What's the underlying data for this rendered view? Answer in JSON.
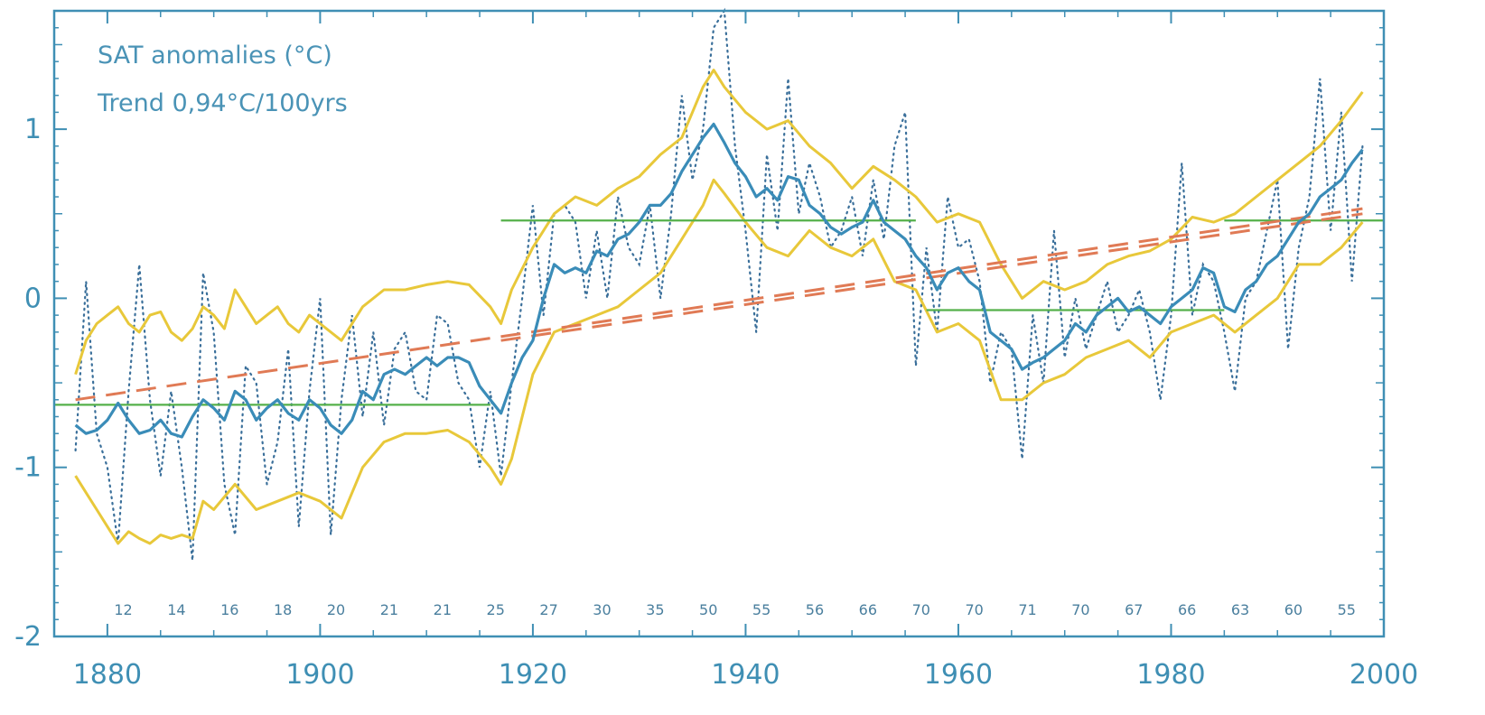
{
  "chart_data": {
    "type": "line",
    "legend": {
      "title": "SAT anomalies (°C)",
      "trend": "Trend 0,94°C/100yrs",
      "placement": "top-left"
    },
    "xlim": [
      1875,
      2000
    ],
    "ylim": [
      -2,
      1.7
    ],
    "x_ticks": [
      1880,
      1900,
      1920,
      1940,
      1960,
      1980,
      2000
    ],
    "y_ticks": [
      -2,
      -1,
      0,
      1
    ],
    "y_tick_labels": [
      "-2",
      "-1",
      "0",
      "1"
    ],
    "grid": false,
    "colors": {
      "axis": "#3f8fb4",
      "annual": "#3a6f9a",
      "smoothed": "#3a8cb8",
      "confidence": "#e8c83a",
      "mean": "#55b04a",
      "trend": "#e07a55"
    },
    "station_counts": {
      "years": [
        1881.5,
        1886.5,
        1891.5,
        1896.5,
        1901.5,
        1906.5,
        1911.5,
        1916.5,
        1921.5,
        1926.5,
        1931.5,
        1936.5,
        1941.5,
        1946.5,
        1951.5,
        1956.5,
        1961.5,
        1966.5,
        1971.5,
        1976.5,
        1981.5,
        1986.5,
        1991.5,
        1996.5
      ],
      "labels": [
        "12",
        "14",
        "16",
        "18",
        "20",
        "21",
        "21",
        "25",
        "27",
        "30",
        "35",
        "50",
        "55",
        "56",
        "66",
        "70",
        "70",
        "71",
        "70",
        "67",
        "66",
        "63",
        "60",
        "55"
      ]
    },
    "series": [
      {
        "role": "annual",
        "style": "dotted",
        "x": [
          1877,
          1878,
          1879,
          1880,
          1881,
          1882,
          1883,
          1884,
          1885,
          1886,
          1887,
          1888,
          1889,
          1890,
          1891,
          1892,
          1893,
          1894,
          1895,
          1896,
          1897,
          1898,
          1899,
          1900,
          1901,
          1902,
          1903,
          1904,
          1905,
          1906,
          1907,
          1908,
          1909,
          1910,
          1911,
          1912,
          1913,
          1914,
          1915,
          1916,
          1917,
          1918,
          1919,
          1920,
          1921,
          1922,
          1923,
          1924,
          1925,
          1926,
          1927,
          1928,
          1929,
          1930,
          1931,
          1932,
          1933,
          1934,
          1935,
          1936,
          1937,
          1938,
          1939,
          1940,
          1941,
          1942,
          1943,
          1944,
          1945,
          1946,
          1947,
          1948,
          1949,
          1950,
          1951,
          1952,
          1953,
          1954,
          1955,
          1956,
          1957,
          1958,
          1959,
          1960,
          1961,
          1962,
          1963,
          1964,
          1965,
          1966,
          1967,
          1968,
          1969,
          1970,
          1971,
          1972,
          1973,
          1974,
          1975,
          1976,
          1977,
          1978,
          1979,
          1980,
          1981,
          1982,
          1983,
          1984,
          1985,
          1986,
          1987,
          1988,
          1989,
          1990,
          1991,
          1992,
          1993,
          1994,
          1995,
          1996,
          1997,
          1998
        ],
        "y": [
          -0.9,
          0.1,
          -0.8,
          -1.0,
          -1.45,
          -0.55,
          0.2,
          -0.6,
          -1.05,
          -0.55,
          -1.0,
          -1.55,
          0.15,
          -0.2,
          -1.1,
          -1.4,
          -0.4,
          -0.5,
          -1.1,
          -0.85,
          -0.3,
          -1.35,
          -0.55,
          0.0,
          -1.4,
          -0.6,
          -0.1,
          -0.7,
          -0.2,
          -0.75,
          -0.3,
          -0.2,
          -0.55,
          -0.6,
          -0.1,
          -0.15,
          -0.5,
          -0.6,
          -1.0,
          -0.55,
          -1.05,
          -0.5,
          0.0,
          0.55,
          -0.1,
          0.5,
          0.55,
          0.45,
          0.0,
          0.4,
          0.0,
          0.6,
          0.3,
          0.2,
          0.55,
          0.0,
          0.5,
          1.2,
          0.7,
          1.0,
          1.6,
          1.7,
          0.9,
          0.4,
          -0.2,
          0.85,
          0.4,
          1.3,
          0.5,
          0.8,
          0.6,
          0.3,
          0.4,
          0.6,
          0.25,
          0.7,
          0.35,
          0.9,
          1.1,
          -0.4,
          0.3,
          -0.2,
          0.6,
          0.3,
          0.35,
          0.1,
          -0.5,
          -0.2,
          -0.3,
          -0.95,
          -0.1,
          -0.5,
          0.4,
          -0.35,
          0.0,
          -0.3,
          -0.1,
          0.1,
          -0.2,
          -0.1,
          0.05,
          -0.2,
          -0.6,
          -0.1,
          0.8,
          -0.1,
          0.2,
          0.1,
          -0.2,
          -0.55,
          0.0,
          0.1,
          0.4,
          0.7,
          -0.3,
          0.3,
          0.6,
          1.3,
          0.4,
          1.1,
          0.1,
          0.9
        ]
      },
      {
        "role": "smoothed",
        "style": "solid",
        "x": [
          1877,
          1878,
          1879,
          1880,
          1881,
          1882,
          1883,
          1884,
          1885,
          1886,
          1887,
          1888,
          1889,
          1890,
          1891,
          1892,
          1893,
          1894,
          1895,
          1896,
          1897,
          1898,
          1899,
          1900,
          1901,
          1902,
          1903,
          1904,
          1905,
          1906,
          1907,
          1908,
          1909,
          1910,
          1911,
          1912,
          1913,
          1914,
          1915,
          1916,
          1917,
          1918,
          1919,
          1920,
          1921,
          1922,
          1923,
          1924,
          1925,
          1926,
          1927,
          1928,
          1929,
          1930,
          1931,
          1932,
          1933,
          1934,
          1935,
          1936,
          1937,
          1938,
          1939,
          1940,
          1941,
          1942,
          1943,
          1944,
          1945,
          1946,
          1947,
          1948,
          1949,
          1950,
          1951,
          1952,
          1953,
          1954,
          1955,
          1956,
          1957,
          1958,
          1959,
          1960,
          1961,
          1962,
          1963,
          1964,
          1965,
          1966,
          1967,
          1968,
          1969,
          1970,
          1971,
          1972,
          1973,
          1974,
          1975,
          1976,
          1977,
          1978,
          1979,
          1980,
          1981,
          1982,
          1983,
          1984,
          1985,
          1986,
          1987,
          1988,
          1989,
          1990,
          1991,
          1992,
          1993,
          1994,
          1995,
          1996,
          1997,
          1998
        ],
        "y": [
          -0.75,
          -0.8,
          -0.78,
          -0.72,
          -0.62,
          -0.72,
          -0.8,
          -0.78,
          -0.72,
          -0.8,
          -0.82,
          -0.7,
          -0.6,
          -0.65,
          -0.72,
          -0.55,
          -0.6,
          -0.72,
          -0.65,
          -0.6,
          -0.68,
          -0.72,
          -0.6,
          -0.65,
          -0.75,
          -0.8,
          -0.72,
          -0.55,
          -0.6,
          -0.45,
          -0.42,
          -0.45,
          -0.4,
          -0.35,
          -0.4,
          -0.35,
          -0.35,
          -0.38,
          -0.52,
          -0.6,
          -0.68,
          -0.5,
          -0.35,
          -0.25,
          0.0,
          0.2,
          0.15,
          0.18,
          0.15,
          0.28,
          0.25,
          0.35,
          0.38,
          0.45,
          0.55,
          0.55,
          0.62,
          0.75,
          0.85,
          0.95,
          1.03,
          0.92,
          0.8,
          0.72,
          0.6,
          0.65,
          0.58,
          0.72,
          0.7,
          0.55,
          0.5,
          0.42,
          0.38,
          0.42,
          0.45,
          0.58,
          0.45,
          0.4,
          0.35,
          0.25,
          0.18,
          0.05,
          0.15,
          0.18,
          0.1,
          0.05,
          -0.2,
          -0.25,
          -0.3,
          -0.42,
          -0.38,
          -0.35,
          -0.3,
          -0.25,
          -0.15,
          -0.2,
          -0.1,
          -0.05,
          0.0,
          -0.08,
          -0.05,
          -0.1,
          -0.15,
          -0.05,
          0.0,
          0.05,
          0.18,
          0.15,
          -0.05,
          -0.08,
          0.05,
          0.1,
          0.2,
          0.25,
          0.35,
          0.45,
          0.5,
          0.6,
          0.65,
          0.7,
          0.8,
          0.88
        ]
      },
      {
        "role": "upper-bound",
        "style": "solid",
        "x": [
          1877,
          1878,
          1879,
          1880,
          1881,
          1882,
          1883,
          1884,
          1885,
          1886,
          1887,
          1888,
          1889,
          1890,
          1891,
          1892,
          1893,
          1894,
          1895,
          1896,
          1897,
          1898,
          1899,
          1900,
          1902,
          1904,
          1906,
          1908,
          1910,
          1912,
          1914,
          1916,
          1917,
          1918,
          1920,
          1922,
          1924,
          1926,
          1928,
          1930,
          1932,
          1934,
          1936,
          1937,
          1938,
          1940,
          1942,
          1944,
          1946,
          1948,
          1950,
          1952,
          1954,
          1956,
          1958,
          1960,
          1962,
          1964,
          1966,
          1968,
          1970,
          1972,
          1974,
          1976,
          1978,
          1980,
          1982,
          1984,
          1986,
          1988,
          1990,
          1992,
          1994,
          1996,
          1998
        ],
        "y": [
          -0.45,
          -0.25,
          -0.15,
          -0.1,
          -0.05,
          -0.15,
          -0.2,
          -0.1,
          -0.08,
          -0.2,
          -0.25,
          -0.18,
          -0.05,
          -0.1,
          -0.18,
          0.05,
          -0.05,
          -0.15,
          -0.1,
          -0.05,
          -0.15,
          -0.2,
          -0.1,
          -0.15,
          -0.25,
          -0.05,
          0.05,
          0.05,
          0.08,
          0.1,
          0.08,
          -0.05,
          -0.15,
          0.05,
          0.3,
          0.5,
          0.6,
          0.55,
          0.65,
          0.72,
          0.85,
          0.95,
          1.25,
          1.35,
          1.25,
          1.1,
          1.0,
          1.05,
          0.9,
          0.8,
          0.65,
          0.78,
          0.7,
          0.6,
          0.45,
          0.5,
          0.45,
          0.2,
          0.0,
          0.1,
          0.05,
          0.1,
          0.2,
          0.25,
          0.28,
          0.35,
          0.48,
          0.45,
          0.5,
          0.6,
          0.7,
          0.8,
          0.9,
          1.05,
          1.22
        ]
      },
      {
        "role": "lower-bound",
        "style": "solid",
        "x": [
          1877,
          1878,
          1879,
          1880,
          1881,
          1882,
          1883,
          1884,
          1885,
          1886,
          1887,
          1888,
          1889,
          1890,
          1892,
          1894,
          1896,
          1898,
          1900,
          1902,
          1904,
          1906,
          1908,
          1910,
          1912,
          1914,
          1916,
          1917,
          1918,
          1920,
          1922,
          1924,
          1926,
          1928,
          1930,
          1932,
          1934,
          1936,
          1937,
          1938,
          1940,
          1942,
          1944,
          1946,
          1948,
          1950,
          1952,
          1954,
          1956,
          1958,
          1960,
          1962,
          1964,
          1966,
          1968,
          1970,
          1972,
          1974,
          1976,
          1978,
          1980,
          1982,
          1984,
          1986,
          1988,
          1990,
          1992,
          1994,
          1996,
          1998
        ],
        "y": [
          -1.05,
          -1.15,
          -1.25,
          -1.35,
          -1.45,
          -1.38,
          -1.42,
          -1.45,
          -1.4,
          -1.42,
          -1.4,
          -1.42,
          -1.2,
          -1.25,
          -1.1,
          -1.25,
          -1.2,
          -1.15,
          -1.2,
          -1.3,
          -1.0,
          -0.85,
          -0.8,
          -0.8,
          -0.78,
          -0.85,
          -1.0,
          -1.1,
          -0.95,
          -0.45,
          -0.2,
          -0.15,
          -0.1,
          -0.05,
          0.05,
          0.15,
          0.35,
          0.55,
          0.7,
          0.62,
          0.45,
          0.3,
          0.25,
          0.4,
          0.3,
          0.25,
          0.35,
          0.1,
          0.05,
          -0.2,
          -0.15,
          -0.25,
          -0.6,
          -0.6,
          -0.5,
          -0.45,
          -0.35,
          -0.3,
          -0.25,
          -0.35,
          -0.2,
          -0.15,
          -0.1,
          -0.2,
          -0.1,
          0.0,
          0.2,
          0.2,
          0.3,
          0.45
        ]
      },
      {
        "role": "period-mean",
        "style": "solid",
        "segments": [
          {
            "x": [
              1875,
              1916
            ],
            "y": -0.63
          },
          {
            "x": [
              1917,
              1956
            ],
            "y": 0.46
          },
          {
            "x": [
              1957,
              1985
            ],
            "y": -0.07
          },
          {
            "x": [
              1985,
              2000
            ],
            "y": 0.46
          }
        ]
      },
      {
        "role": "linear-trend",
        "style": "dashed",
        "x": [
          1877,
          1998
        ],
        "y": [
          -0.6,
          0.53
        ]
      },
      {
        "role": "linear-trend-secondary",
        "style": "dashed",
        "x": [
          1917,
          1998
        ],
        "y": [
          -0.25,
          0.5
        ]
      }
    ]
  }
}
